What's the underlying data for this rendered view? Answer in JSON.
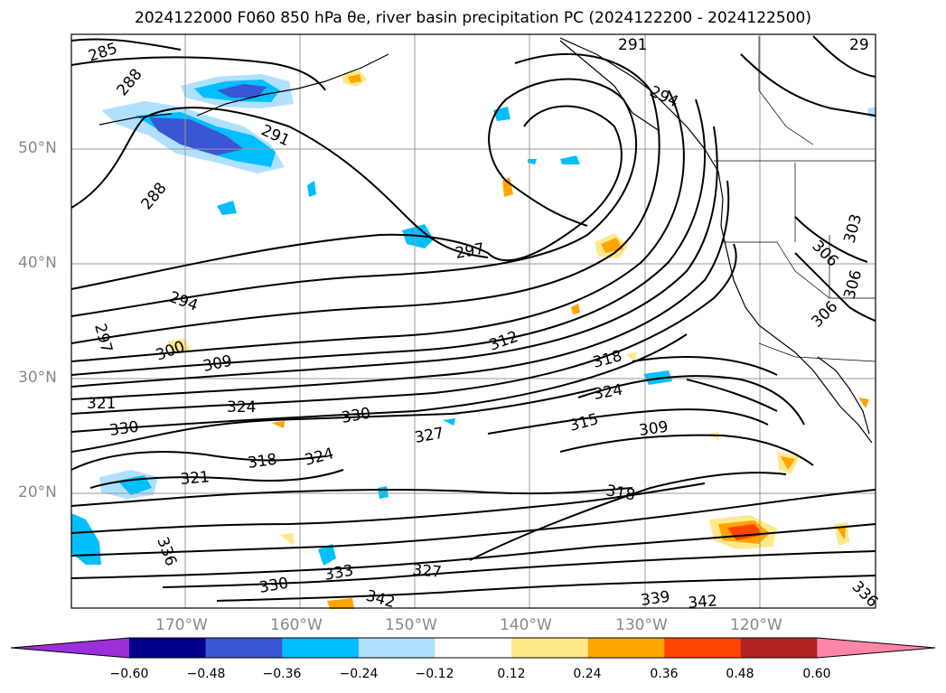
{
  "title": "2024122000 F060 850 hPa θe, river basin precipitation PC (2024122200 - 2024122500)",
  "lat_labels": [
    "50°N",
    "40°N",
    "30°N",
    "20°N"
  ],
  "lon_labels": [
    "170°W",
    "160°W",
    "150°W",
    "140°W",
    "130°W",
    "120°W"
  ],
  "contour_labels": [
    "285",
    "288",
    "291",
    "288",
    "291",
    "294",
    "297",
    "294",
    "297",
    "300",
    "309",
    "312",
    "318",
    "321",
    "324",
    "324",
    "330",
    "330",
    "327",
    "315",
    "309",
    "318",
    "324",
    "321",
    "318",
    "336",
    "330",
    "333",
    "327",
    "342",
    "339",
    "342",
    "306",
    "306",
    "303",
    "306",
    "336",
    "29"
  ],
  "colorbar": {
    "ticks": [
      "−0.60",
      "−0.48",
      "−0.36",
      "−0.24",
      "−0.12",
      "0.12",
      "0.24",
      "0.36",
      "0.48",
      "0.60"
    ],
    "colors": [
      "#9b30d9",
      "#00008b",
      "#3a56d4",
      "#00bfff",
      "#b0e0ff",
      "#ffffff",
      "#ffe88a",
      "#ffa500",
      "#ff4500",
      "#b22222",
      "#ff85a8"
    ]
  },
  "colors": {
    "contour": "#000000",
    "grid": "#999999",
    "axis_label": "#888888"
  }
}
